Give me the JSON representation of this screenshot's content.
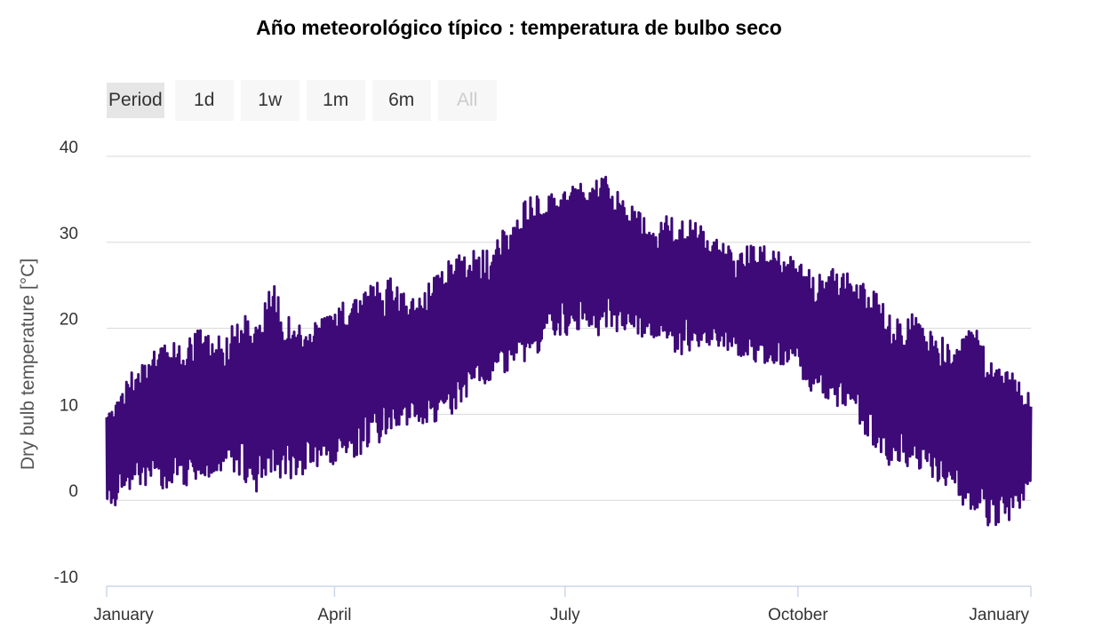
{
  "chart_data": {
    "type": "line",
    "title": "Año meteorológico típico : temperatura de bulbo seco",
    "ylabel": "Dry bulb temperature [°C]",
    "xlabel": "",
    "ylim": [
      -10,
      40
    ],
    "yticks": [
      "-10",
      "0",
      "10",
      "20",
      "30",
      "40"
    ],
    "x_axis": "day of year (0–365)",
    "xticks": [
      {
        "label": "January",
        "day": 0
      },
      {
        "label": "April",
        "day": 90
      },
      {
        "label": "July",
        "day": 181
      },
      {
        "label": "October",
        "day": 273
      },
      {
        "label": "January",
        "day": 365
      }
    ],
    "grid": true,
    "legend": "none",
    "line_color": "#3d0a78",
    "series": [
      {
        "x": [
          0,
          7,
          14,
          21,
          30,
          37,
          45,
          52,
          59,
          66,
          74,
          81,
          90,
          97,
          105,
          112,
          120,
          128,
          136,
          143,
          151,
          158,
          166,
          173,
          181,
          188,
          196,
          204,
          212,
          219,
          227,
          234,
          242,
          249,
          257,
          264,
          273,
          280,
          288,
          295,
          303,
          310,
          318,
          325,
          334,
          341,
          349,
          356,
          365
        ],
        "min": [
          -2,
          1,
          2,
          1,
          2,
          1,
          3,
          3,
          1,
          3,
          2,
          4,
          4,
          5,
          6,
          8,
          9,
          9,
          10,
          12,
          14,
          15,
          16,
          18,
          19,
          20,
          19,
          20,
          19,
          18,
          17,
          18,
          18,
          17,
          16,
          16,
          15,
          12,
          11,
          10,
          5,
          4,
          4,
          3,
          1,
          -2,
          -3,
          -4,
          2
        ],
        "max": [
          11,
          14,
          16,
          19,
          18,
          20,
          19,
          21,
          22,
          25,
          20,
          21,
          22,
          24,
          25,
          26,
          23,
          26,
          28,
          29,
          29,
          32,
          35,
          36,
          36,
          37,
          38,
          35,
          33,
          33,
          33,
          32,
          30,
          29,
          30,
          29,
          28,
          26,
          27,
          26,
          25,
          21,
          22,
          20,
          18,
          21,
          17,
          16,
          12
        ]
      }
    ]
  },
  "period_selector": {
    "label": "Period",
    "buttons": [
      {
        "label": "1d",
        "enabled": true
      },
      {
        "label": "1w",
        "enabled": true
      },
      {
        "label": "1m",
        "enabled": true
      },
      {
        "label": "6m",
        "enabled": true
      },
      {
        "label": "All",
        "enabled": false
      }
    ]
  }
}
